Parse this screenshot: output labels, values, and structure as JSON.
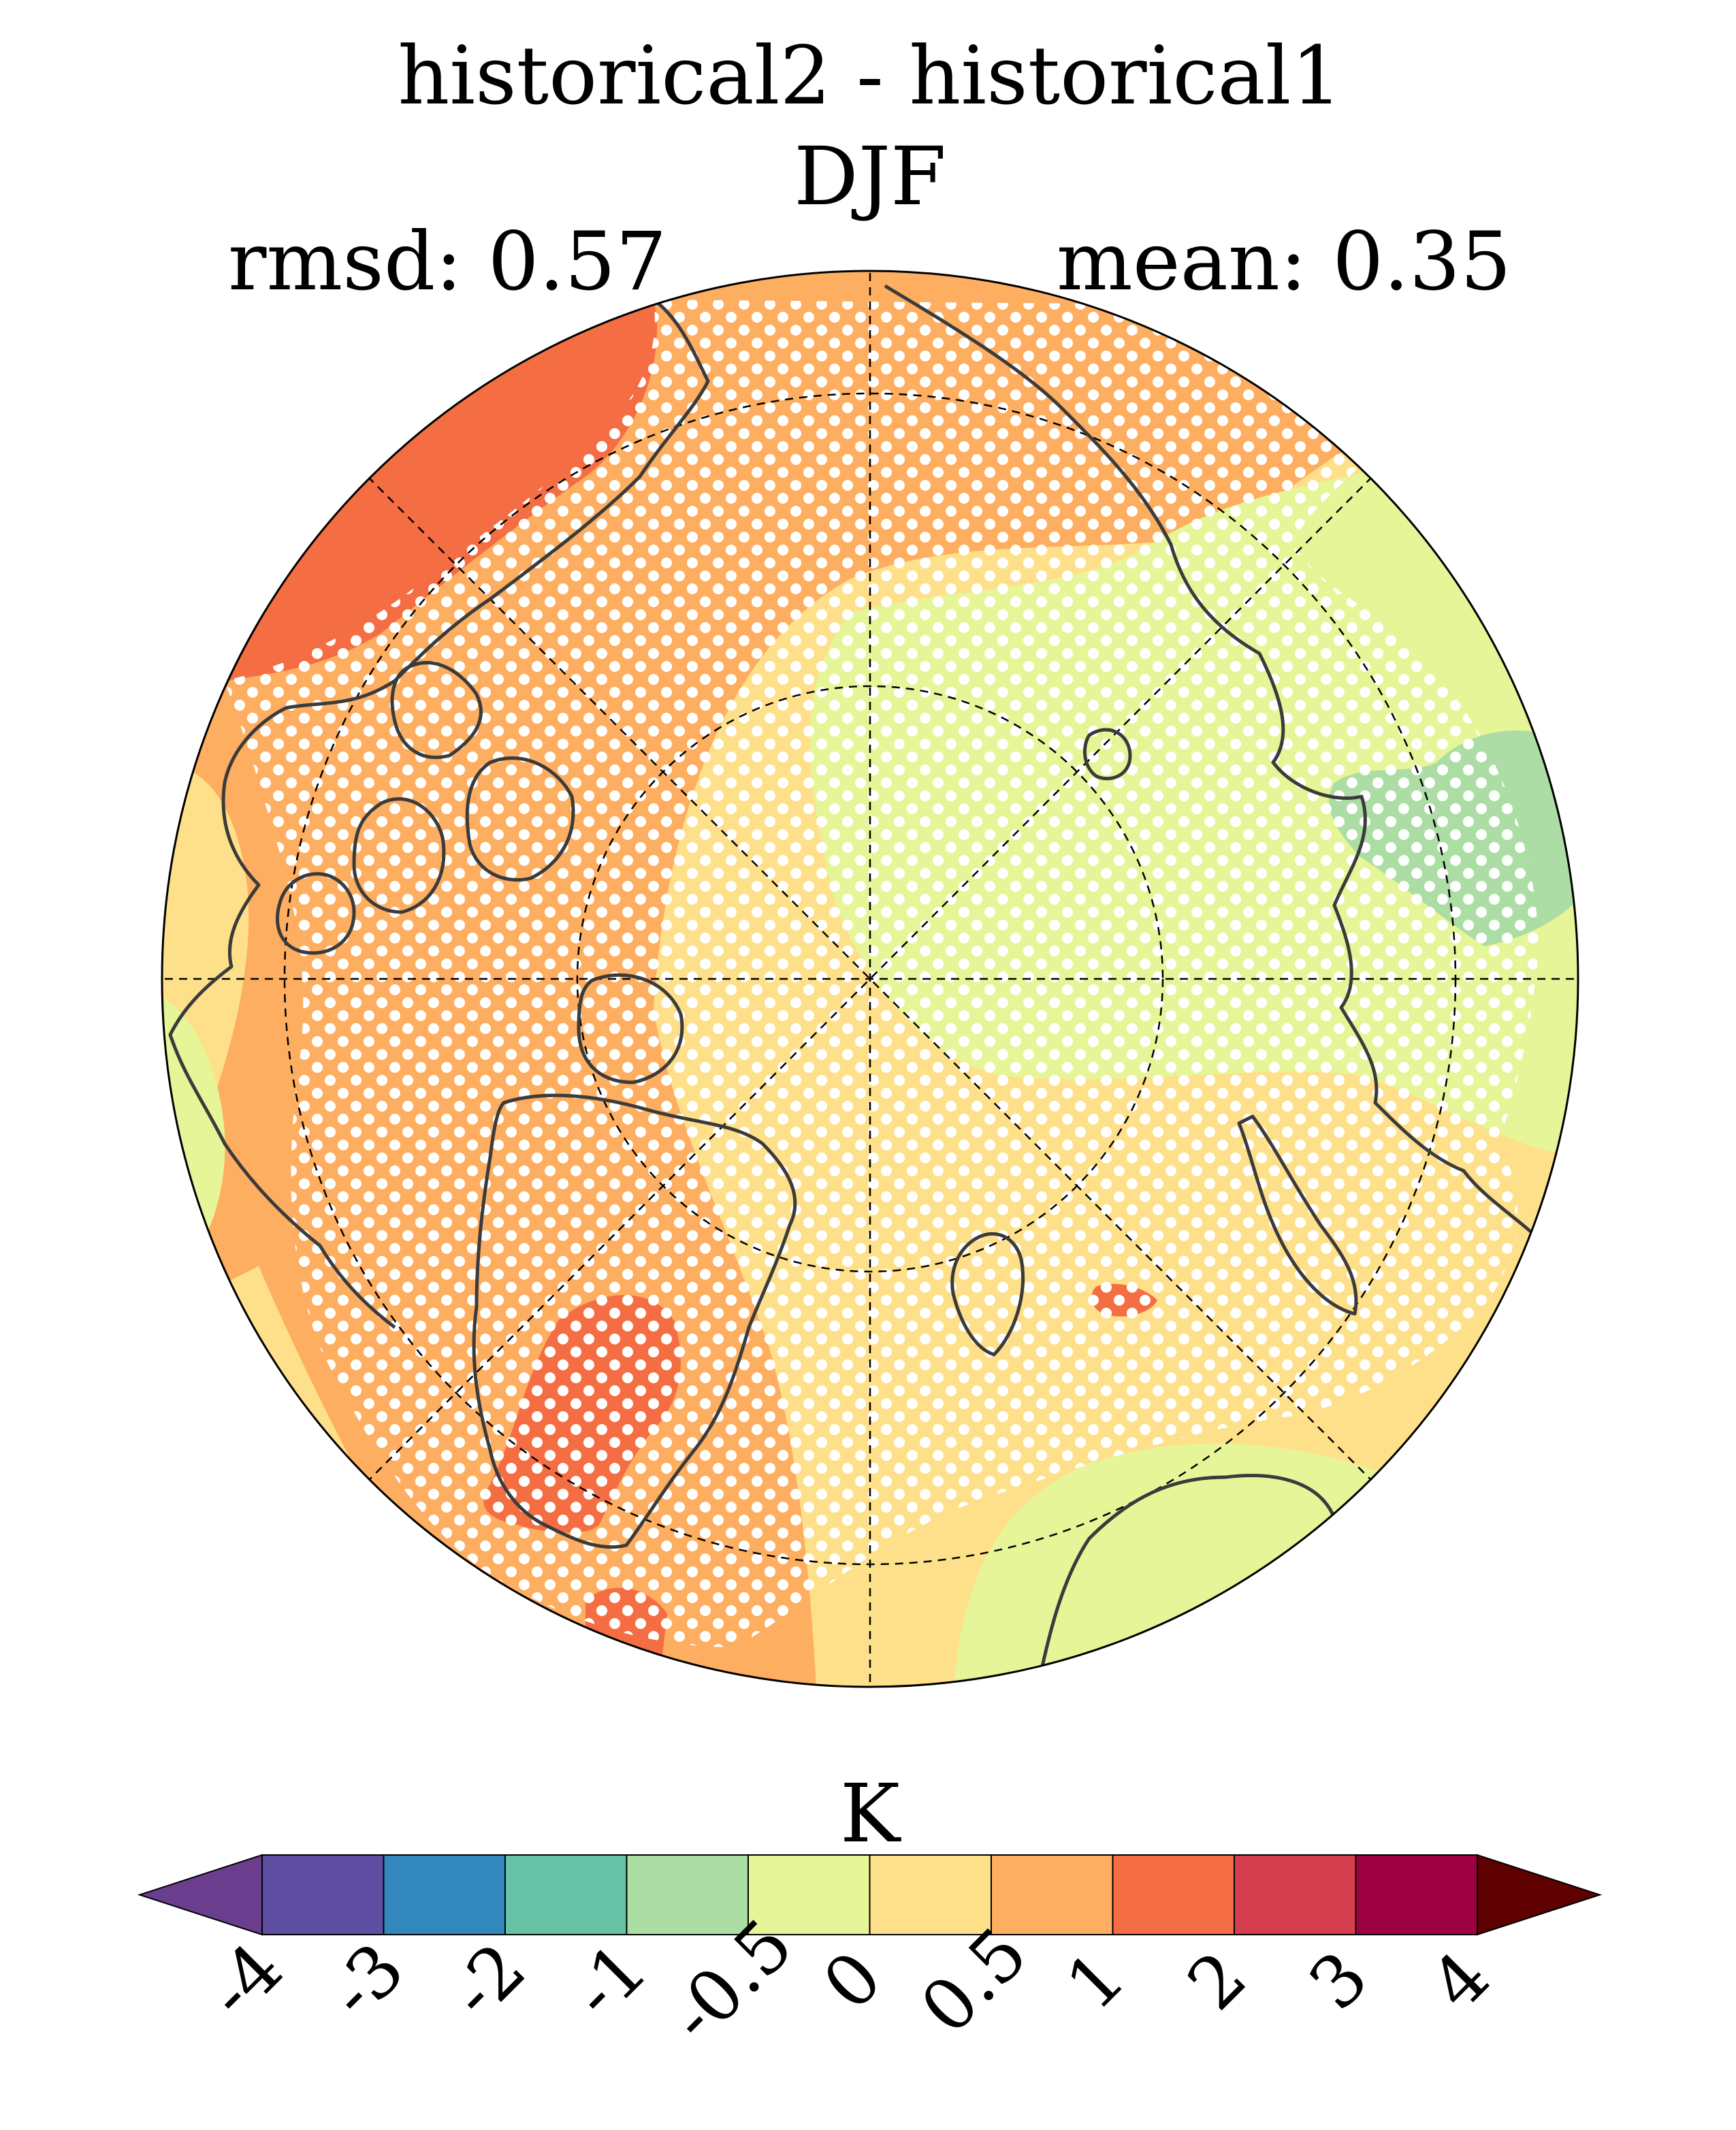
{
  "title": {
    "line1": "historical2 - historical1",
    "line2": "DJF",
    "rmsd": "rmsd: 0.57",
    "mean": "mean: 0.35"
  },
  "map": {
    "projection": "north-polar-stereographic",
    "stippling": "significance dots (white)"
  },
  "colorbar": {
    "unit": "K",
    "tick_labels": [
      "-4",
      "-3",
      "-2",
      "-1",
      "-0.5",
      "0",
      "0.5",
      "1",
      "2",
      "3",
      "4"
    ],
    "levels": [
      -4,
      -3,
      -2,
      -1,
      -0.5,
      0,
      0.5,
      1,
      2,
      3,
      4
    ],
    "colors": [
      "#5e4fa2",
      "#3288bd",
      "#66c2a5",
      "#abdda4",
      "#e6f598",
      "#fee08b",
      "#fdae61",
      "#f46d43",
      "#d53e4f",
      "#9e0142"
    ],
    "extend_low_color": "#6a3d8f",
    "extend_high_color": "#5e0000"
  },
  "palette": {
    "gt2": "#d53e4f",
    "p1_2": "#f46d43",
    "p05_1": "#fdae61",
    "p0_05": "#fee08b",
    "m05_0": "#e6f598",
    "m1_m05": "#abdda4",
    "coast": "#3b3b3b"
  }
}
